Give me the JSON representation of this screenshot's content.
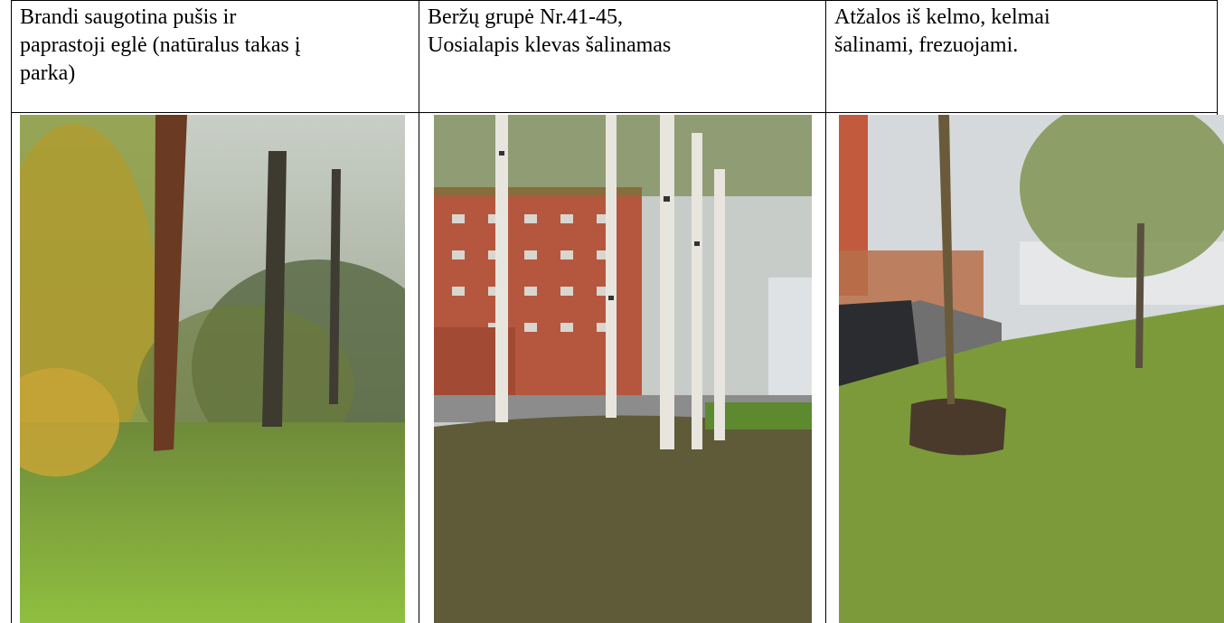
{
  "table": {
    "header": [
      [
        "Brandi saugotina pušis ir",
        "paprastoji eglė (natūralus takas į",
        "parka)"
      ],
      [
        "Beržų grupė Nr.41-45,",
        "Uosialapis klevas šalinamas"
      ],
      [
        "Atžalos iš kelmo, kelmai",
        "šalinami, frezuojami."
      ]
    ]
  }
}
